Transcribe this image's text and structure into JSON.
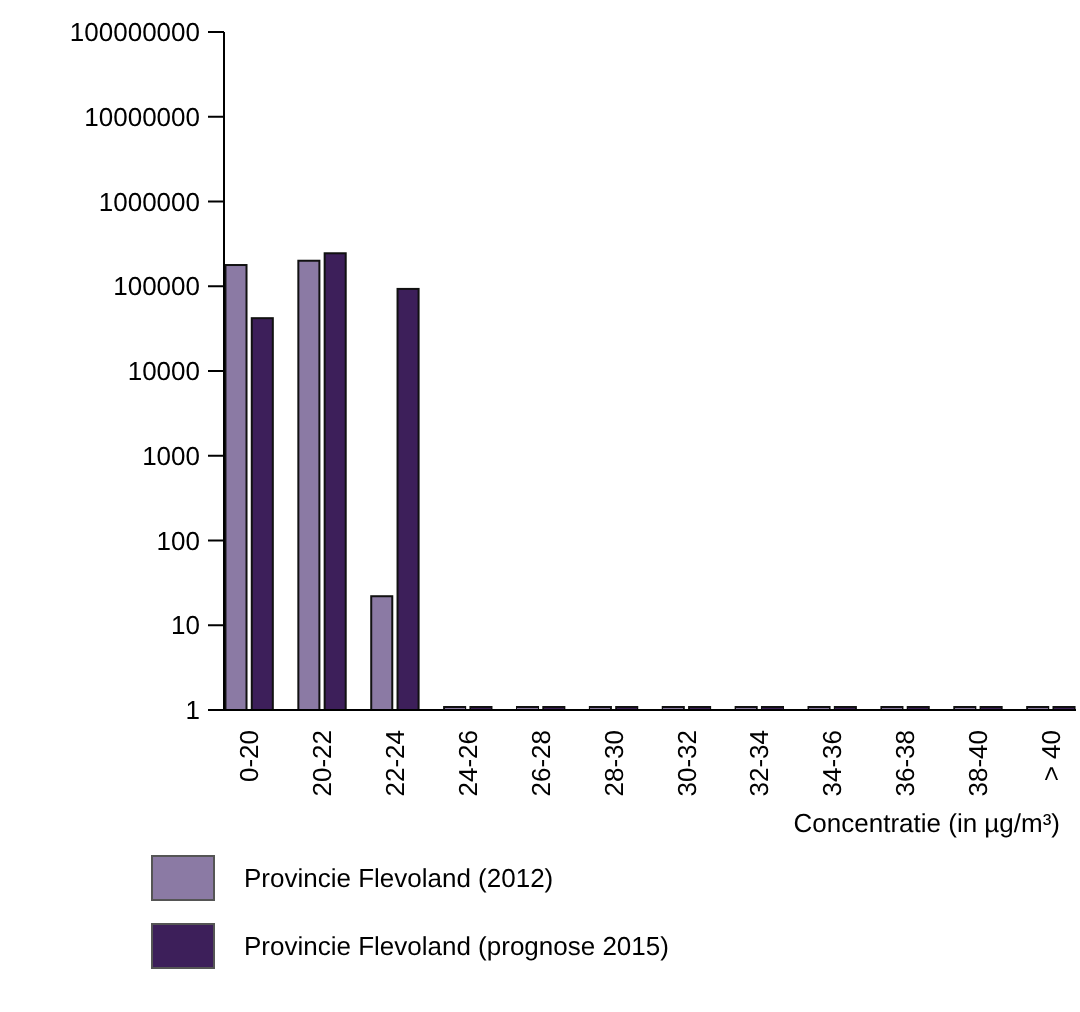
{
  "chart_data": {
    "type": "bar",
    "xlabel": "Concentratie (in µg/m³)",
    "categories": [
      "0-20",
      "20-22",
      "22-24",
      "24-26",
      "26-28",
      "28-30",
      "30-32",
      "32-34",
      "34-36",
      "36-38",
      "38-40",
      "> 40"
    ],
    "series": [
      {
        "name": "Provincie Flevoland (2012)",
        "color": "#8b7aa4",
        "values": [
          178000,
          200000,
          22,
          1,
          1,
          1,
          1,
          1,
          1,
          1,
          1,
          1
        ]
      },
      {
        "name": "Provincie Flevoland (prognose 2015)",
        "color": "#3d1f5a",
        "values": [
          42000,
          245000,
          93000,
          1,
          1,
          1,
          1,
          1,
          1,
          1,
          1,
          1
        ]
      }
    ],
    "log": true,
    "ylim": [
      1,
      100000000
    ],
    "yticks": [
      1,
      10,
      100,
      1000,
      10000,
      100000,
      1000000,
      10000000,
      100000000
    ],
    "legend": "bottom",
    "grid": false
  }
}
